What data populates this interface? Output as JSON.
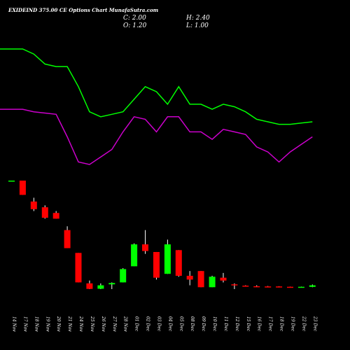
{
  "chart_data": {
    "type": "candlestick",
    "title": "EXIDEIND 375.00 CE Options Chart MunafaSutra.com",
    "ohlc_readout": {
      "open": "O: 1.20",
      "high": "H: 2.40",
      "close": "C: 2.00",
      "low": "L: 1.00"
    },
    "colors": {
      "background": "#000000",
      "up": "#00ff00",
      "down": "#ff0000",
      "upper_line": "#00ff00",
      "lower_line": "#cc00cc",
      "text": "#ffffff",
      "wick": "#ffffff"
    },
    "categories": [
      "14 Nov",
      "17 Nov",
      "18 Nov",
      "19 Nov",
      "20 Nov",
      "21 Nov",
      "24 Nov",
      "25 Nov",
      "26 Nov",
      "27 Nov",
      "28 Nov",
      "01 Dec",
      "02 Dec",
      "03 Dec",
      "04 Dec",
      "05 Dec",
      "08 Dec",
      "09 Dec",
      "10 Dec",
      "11 Dec",
      "12 Dec",
      "15 Dec",
      "16 Dec",
      "17 Dec",
      "18 Dec",
      "19 Dec",
      "22 Dec",
      "23 Dec"
    ],
    "candles": [
      {
        "o": 57.0,
        "h": 57.0,
        "l": 57.0,
        "c": 57.0
      },
      {
        "o": 57.0,
        "h": 57.0,
        "l": 49.5,
        "c": 49.5
      },
      {
        "o": 46.0,
        "h": 48.0,
        "l": 41.0,
        "c": 42.0
      },
      {
        "o": 43.0,
        "h": 44.0,
        "l": 37.0,
        "c": 37.5
      },
      {
        "o": 40.0,
        "h": 41.0,
        "l": 37.0,
        "c": 37.0
      },
      {
        "o": 31.0,
        "h": 33.0,
        "l": 21.5,
        "c": 21.5
      },
      {
        "o": 19.0,
        "h": 19.0,
        "l": 3.5,
        "c": 3.5
      },
      {
        "o": 3.0,
        "h": 4.5,
        "l": 0.0,
        "c": 0.1
      },
      {
        "o": 0.2,
        "h": 3.0,
        "l": 0.0,
        "c": 2.0
      },
      {
        "o": 2.5,
        "h": 3.5,
        "l": 0.0,
        "c": 3.2
      },
      {
        "o": 3.5,
        "h": 11.0,
        "l": 3.5,
        "c": 10.5
      },
      {
        "o": 12.0,
        "h": 24.0,
        "l": 12.0,
        "c": 23.5
      },
      {
        "o": 23.5,
        "h": 31.0,
        "l": 18.5,
        "c": 20.0
      },
      {
        "o": 19.5,
        "h": 19.5,
        "l": 5.0,
        "c": 6.0
      },
      {
        "o": 8.0,
        "h": 26.0,
        "l": 8.0,
        "c": 23.5
      },
      {
        "o": 20.5,
        "h": 20.5,
        "l": 6.5,
        "c": 7.0
      },
      {
        "o": 7.0,
        "h": 9.5,
        "l": 2.0,
        "c": 5.0
      },
      {
        "o": 9.5,
        "h": 9.5,
        "l": 1.0,
        "c": 1.0
      },
      {
        "o": 1.0,
        "h": 7.0,
        "l": 1.0,
        "c": 6.5
      },
      {
        "o": 6.0,
        "h": 8.5,
        "l": 3.5,
        "c": 4.5
      },
      {
        "o": 2.5,
        "h": 3.0,
        "l": 0.0,
        "c": 2.0
      },
      {
        "o": 1.8,
        "h": 2.0,
        "l": 1.6,
        "c": 1.7
      },
      {
        "o": 1.5,
        "h": 2.0,
        "l": 1.2,
        "c": 1.4
      },
      {
        "o": 1.4,
        "h": 1.6,
        "l": 1.0,
        "c": 1.1
      },
      {
        "o": 1.4,
        "h": 1.5,
        "l": 0.9,
        "c": 0.95
      },
      {
        "o": 1.2,
        "h": 1.3,
        "l": 0.95,
        "c": 1.0
      },
      {
        "o": 1.05,
        "h": 1.3,
        "l": 1.0,
        "c": 1.2
      },
      {
        "o": 1.2,
        "h": 2.4,
        "l": 1.0,
        "c": 2.0
      }
    ],
    "indicator_lines": [
      {
        "color": "#00ff00",
        "values": [
          63,
          63,
          61,
          57,
          56,
          56,
          48,
          38,
          36,
          37,
          38,
          43,
          48,
          46,
          41,
          48,
          41,
          41,
          39,
          41,
          40,
          38,
          35,
          34,
          33,
          33,
          33.5,
          34
        ]
      },
      {
        "color": "#cc00cc",
        "values": [
          39,
          39,
          38,
          37.5,
          37,
          28,
          18,
          17,
          20,
          23,
          30,
          36,
          35,
          30,
          36,
          36,
          30,
          30,
          27,
          31,
          30,
          29,
          24,
          22,
          18,
          22,
          25,
          28
        ]
      }
    ],
    "ylim": [
      0,
      70
    ],
    "grid": false
  }
}
